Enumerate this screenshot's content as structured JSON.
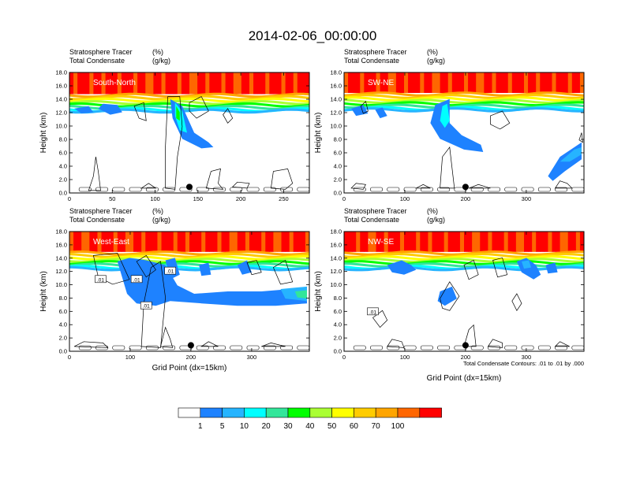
{
  "title": "2014-02-06_00:00:00",
  "colorbar": {
    "labels": [
      "1",
      "5",
      "10",
      "20",
      "30",
      "40",
      "50",
      "60",
      "70",
      "100"
    ],
    "colors": [
      "#ffffff",
      "#1e82ff",
      "#26b4ff",
      "#00ffff",
      "#33e69a",
      "#00ff00",
      "#aaff33",
      "#ffff00",
      "#ffcc00",
      "#ffa500",
      "#ff6600",
      "#ff0000"
    ]
  },
  "chart_data": [
    {
      "type": "contour",
      "panel_label": "South-North",
      "header_left": [
        "Stratosphere Tracer",
        "Total Condensate"
      ],
      "header_right": [
        "(%)",
        "(g/kg)"
      ],
      "ylabel": "Height (km)",
      "xlabel": "",
      "xlim": [
        0,
        280
      ],
      "ylim": [
        0,
        18
      ],
      "x_ticks": [
        "0",
        "50",
        "100",
        "150",
        "200",
        "250"
      ],
      "y_ticks": [
        "0.0",
        "2.0",
        "4.0",
        "6.0",
        "8.0",
        "10.0",
        "12.0",
        "14.0",
        "16.0",
        "18.0"
      ],
      "marker_x": 140,
      "contour_labels": []
    },
    {
      "type": "contour",
      "panel_label": "SW-NE",
      "header_left": [
        "Stratosphere Tracer",
        "Total Condensate"
      ],
      "header_right": [
        "(%)",
        "(g/kg)"
      ],
      "ylabel": "Height (km)",
      "xlabel": "",
      "xlim": [
        0,
        395
      ],
      "ylim": [
        0,
        18
      ],
      "x_ticks": [
        "0",
        "100",
        "200",
        "300"
      ],
      "y_ticks": [
        "0.0",
        "2.0",
        "4.0",
        "6.0",
        "8.0",
        "10.0",
        "12.0",
        "14.0",
        "16.0",
        "18.0"
      ],
      "marker_x": 200,
      "contour_labels": []
    },
    {
      "type": "contour",
      "panel_label": "West-East",
      "header_left": [
        "Stratosphere Tracer",
        "Total Condensate"
      ],
      "header_right": [
        "(%)",
        "(g/kg)"
      ],
      "ylabel": "Height (km)",
      "xlabel": "Grid Point (dx=15km)",
      "xlim": [
        0,
        395
      ],
      "ylim": [
        0,
        18
      ],
      "x_ticks": [
        "0",
        "100",
        "200",
        "300"
      ],
      "y_ticks": [
        "0.0",
        "2.0",
        "4.0",
        "6.0",
        "8.0",
        "10.0",
        "12.0",
        "14.0",
        "16.0",
        "18.0"
      ],
      "marker_x": 200,
      "contour_labels": [
        ".01",
        ".01",
        ".01",
        ".01"
      ]
    },
    {
      "type": "contour",
      "panel_label": "NW-SE",
      "header_left": [
        "Stratosphere Tracer",
        "Total Condensate"
      ],
      "header_right": [
        "(%)",
        "(g/kg)"
      ],
      "ylabel": "Height (km)",
      "xlabel": "Grid Point (dx=15km)",
      "xlim": [
        0,
        395
      ],
      "ylim": [
        0,
        18
      ],
      "x_ticks": [
        "0",
        "100",
        "200",
        "300"
      ],
      "y_ticks": [
        "0.0",
        "2.0",
        "4.0",
        "6.0",
        "8.0",
        "10.0",
        "12.0",
        "14.0",
        "16.0",
        "18.0"
      ],
      "marker_x": 200,
      "contour_labels": [
        ".01"
      ],
      "footnote": "Total Condensate Contours: .01 to .01 by .000"
    }
  ]
}
